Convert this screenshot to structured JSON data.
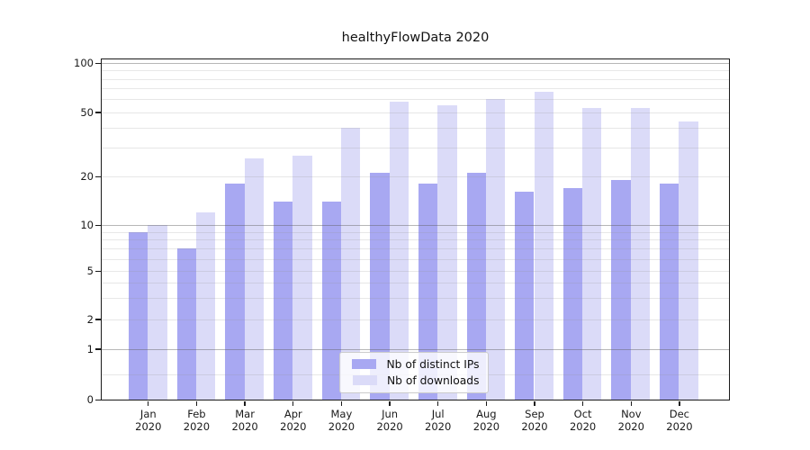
{
  "chart_data": {
    "type": "bar",
    "title": "healthyFlowData 2020",
    "x_axis": {
      "year": "2020",
      "categories": [
        "Jan",
        "Feb",
        "Mar",
        "Apr",
        "May",
        "Jun",
        "Jul",
        "Aug",
        "Sep",
        "Oct",
        "Nov",
        "Dec"
      ]
    },
    "y_axis": {
      "scale": "symlog",
      "ylim": [
        0,
        105
      ],
      "tick_values": [
        0,
        1,
        2,
        5,
        10,
        20,
        50,
        100
      ],
      "tick_labels": [
        "0",
        "1",
        "2",
        "5",
        "10",
        "20",
        "50",
        "100"
      ],
      "major_gridlines": [
        1,
        10,
        100
      ],
      "minor_gridlines": [
        0.5,
        2,
        3,
        4,
        5,
        6,
        7,
        8,
        9,
        20,
        30,
        40,
        50,
        60,
        70,
        80,
        90
      ],
      "grid": true
    },
    "series": [
      {
        "name": "Nb of distinct IPs",
        "color": "#a8a8f2",
        "values": [
          9,
          7,
          18,
          14,
          14,
          21,
          18,
          21,
          16,
          17,
          19,
          18
        ]
      },
      {
        "name": "Nb of downloads",
        "color": "#dbdbf8",
        "values": [
          10,
          12,
          26,
          27,
          40,
          58,
          55,
          60,
          67,
          53,
          53,
          44
        ]
      }
    ],
    "legend": {
      "position": "lower center"
    }
  }
}
